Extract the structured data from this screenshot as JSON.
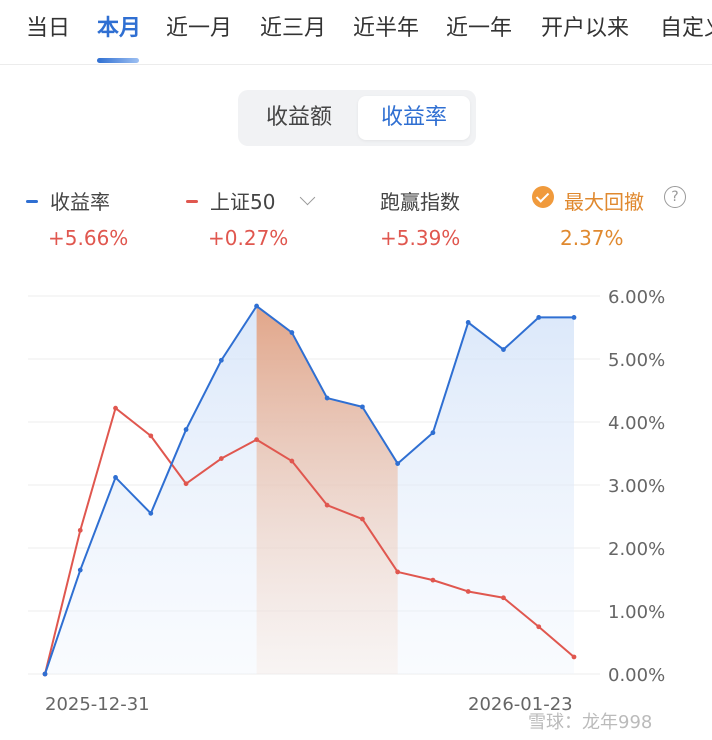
{
  "tabs": [
    "当日",
    "本月",
    "近一月",
    "近三月",
    "近半年",
    "近一年",
    "开户以来",
    "自定义"
  ],
  "active_tab": "本月",
  "segment": [
    "收益额",
    "收益率"
  ],
  "legend": [
    {
      "label": "收益率",
      "value": "+5.66%",
      "color": "#2f6fd2"
    },
    {
      "label": "上证50",
      "value": "+0.27%",
      "color": "#e0574f"
    },
    {
      "label": "跑赢指数",
      "value": "+5.39%",
      "color": "#e0574f"
    },
    {
      "label": "最大回撤",
      "value": "2.37%",
      "color": "#f09a3c"
    }
  ],
  "icons": {
    "legend_dropdown": "chevron-down-icon",
    "drawdown_toggle": "check-circle-icon",
    "help": "question-circle-icon"
  },
  "help_glyph": "?",
  "watermark": "雪球：龙年998",
  "chart_data": {
    "type": "line",
    "x_start_label": "2025-12-31",
    "x_end_label": "2026-01-23",
    "ylim": [
      0,
      6
    ],
    "y_ticks": [
      "0.00%",
      "1.00%",
      "2.00%",
      "3.00%",
      "4.00%",
      "5.00%",
      "6.00%"
    ],
    "grid": true,
    "series": [
      {
        "name": "收益率",
        "color": "#2f6fd2",
        "values": [
          0.0,
          1.65,
          3.12,
          2.55,
          3.88,
          4.98,
          5.84,
          5.42,
          4.38,
          4.24,
          3.34,
          3.83,
          5.58,
          5.15,
          5.66,
          5.66
        ]
      },
      {
        "name": "上证50",
        "color": "#e0574f",
        "values": [
          0.0,
          2.28,
          4.22,
          3.78,
          3.02,
          3.42,
          3.72,
          3.38,
          2.68,
          2.46,
          1.62,
          1.49,
          1.31,
          1.21,
          0.75,
          0.27
        ]
      }
    ],
    "max_drawdown": {
      "value": "2.37%",
      "from_index": 6,
      "to_index": 10,
      "color": "#e9a07a"
    }
  }
}
